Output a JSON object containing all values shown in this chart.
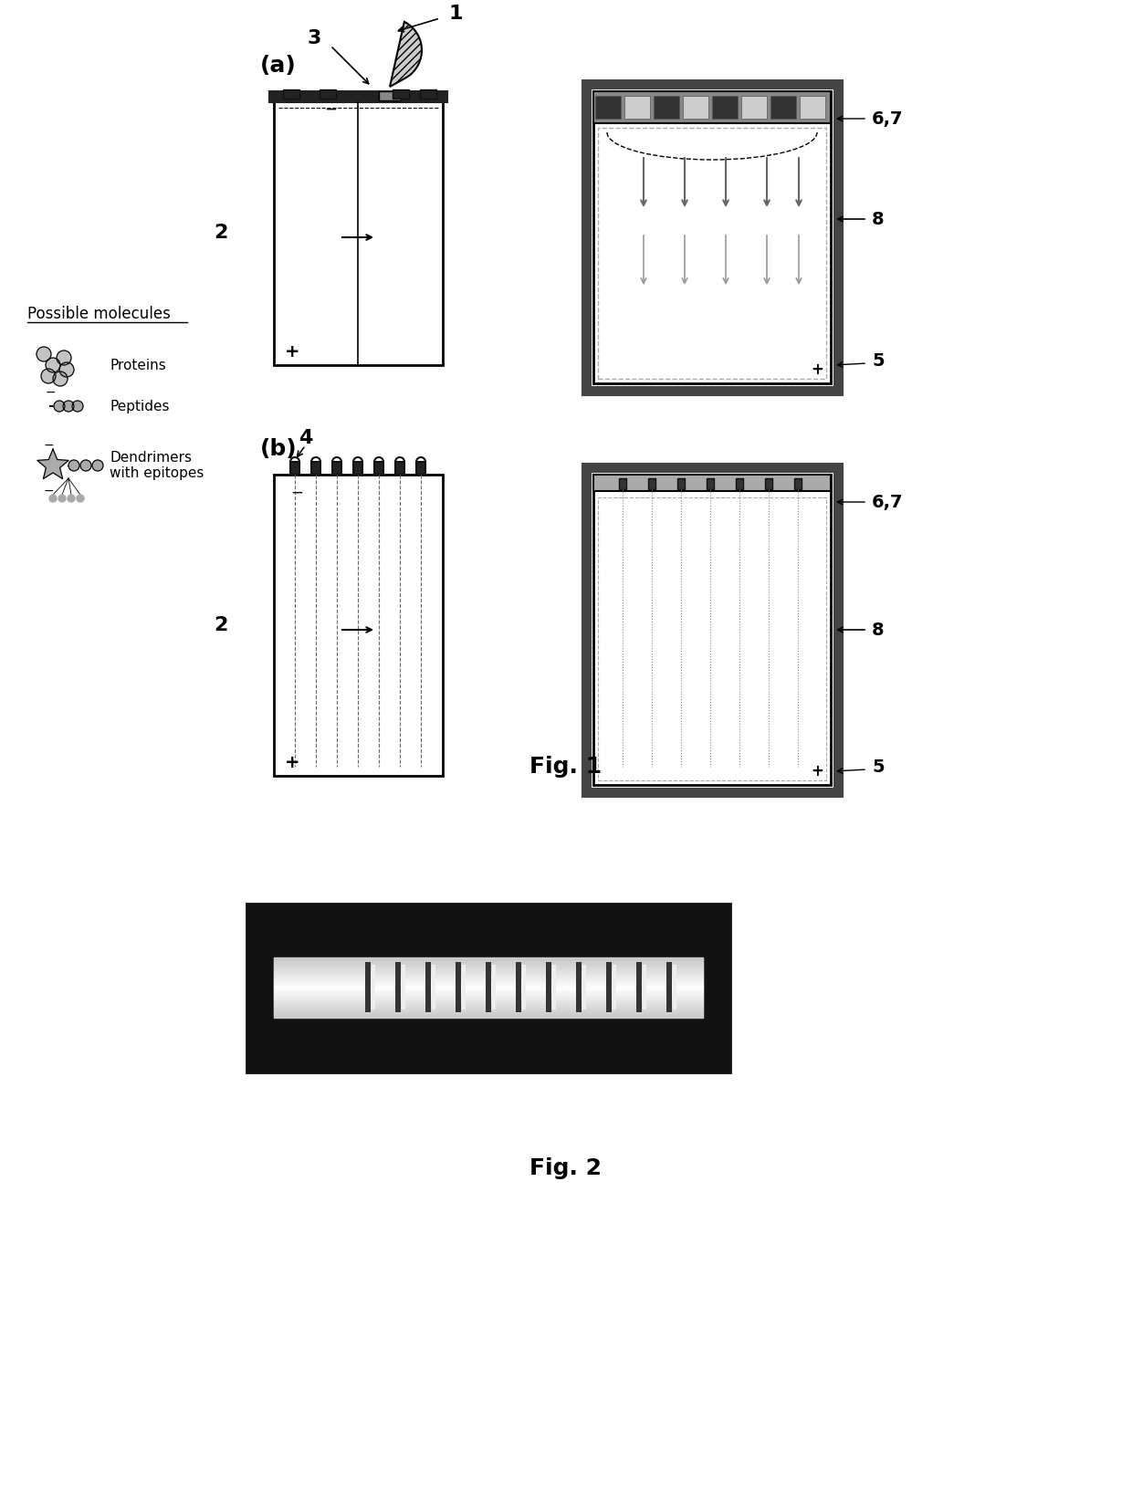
{
  "fig1_label": "Fig. 1",
  "fig2_label": "Fig. 2",
  "label_a": "(a)",
  "label_b": "(b)",
  "bg_color": "#ffffff",
  "text_color": "#000000",
  "possible_molecules_label": "Possible molecules",
  "proteins_label": "Proteins",
  "peptides_label": "Peptides",
  "dendrimers_label": "Dendrimers\nwith epitopes"
}
